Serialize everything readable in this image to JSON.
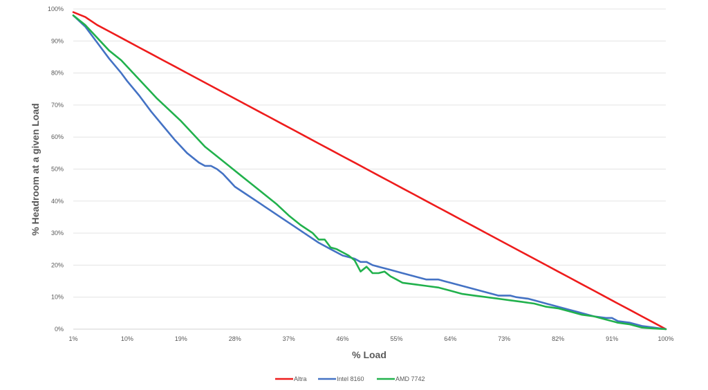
{
  "chart_data": {
    "type": "line",
    "title": "",
    "xlabel": "% Load",
    "ylabel": "% Headroom at a given Load",
    "xlim": [
      1,
      100
    ],
    "ylim": [
      0,
      100
    ],
    "grid": "horizontal",
    "legend_position": "bottom",
    "x_tick_labels": [
      {
        "value": 1,
        "label": "1%"
      },
      {
        "value": 10,
        "label": "10%"
      },
      {
        "value": 19,
        "label": "19%"
      },
      {
        "value": 28,
        "label": "28%"
      },
      {
        "value": 37,
        "label": "37%"
      },
      {
        "value": 46,
        "label": "46%"
      },
      {
        "value": 55,
        "label": "55%"
      },
      {
        "value": 64,
        "label": "64%"
      },
      {
        "value": 73,
        "label": "73%"
      },
      {
        "value": 82,
        "label": "82%"
      },
      {
        "value": 91,
        "label": "91%"
      },
      {
        "value": 100,
        "label": "100%"
      }
    ],
    "y_tick_labels": [
      {
        "value": 0,
        "label": "0%"
      },
      {
        "value": 10,
        "label": "10%"
      },
      {
        "value": 20,
        "label": "20%"
      },
      {
        "value": 30,
        "label": "30%"
      },
      {
        "value": 40,
        "label": "40%"
      },
      {
        "value": 50,
        "label": "50%"
      },
      {
        "value": 60,
        "label": "60%"
      },
      {
        "value": 70,
        "label": "70%"
      },
      {
        "value": 80,
        "label": "80%"
      },
      {
        "value": 90,
        "label": "90%"
      },
      {
        "value": 100,
        "label": "100%"
      }
    ],
    "series": [
      {
        "name": "Altra",
        "color": "#ee1c1c",
        "x": [
          1,
          3,
          5,
          7,
          9,
          10,
          12,
          14,
          16,
          18,
          20,
          22,
          24,
          26,
          28,
          30,
          32,
          34,
          36,
          38,
          40,
          42,
          44,
          46,
          48,
          50,
          52,
          54,
          56,
          58,
          60,
          62,
          64,
          66,
          68,
          70,
          72,
          74,
          76,
          78,
          80,
          82,
          84,
          86,
          88,
          90,
          92,
          94,
          96,
          98,
          100
        ],
        "y": [
          99,
          97.5,
          95,
          93,
          91,
          90,
          88,
          86,
          84,
          82,
          80,
          78,
          76,
          74,
          72,
          70,
          68,
          66,
          64,
          62,
          60,
          58,
          56,
          54,
          52,
          50,
          48,
          46,
          44,
          42,
          40,
          38,
          36,
          34,
          32,
          30,
          28,
          26,
          24,
          22,
          20,
          18,
          16,
          14,
          12,
          10,
          8,
          6,
          4,
          2,
          0
        ]
      },
      {
        "name": "Intel 8160",
        "color": "#4472c4",
        "x": [
          1,
          3,
          5,
          7,
          9,
          10,
          12,
          14,
          16,
          18,
          20,
          22,
          23,
          24,
          25,
          26,
          27,
          28,
          30,
          32,
          34,
          36,
          38,
          40,
          42,
          44,
          46,
          48,
          49,
          50,
          51,
          52,
          54,
          56,
          58,
          60,
          62,
          63,
          64,
          66,
          68,
          70,
          72,
          74,
          75,
          77,
          78,
          80,
          82,
          84,
          85,
          86,
          88,
          90,
          91,
          92,
          94,
          96,
          98,
          100
        ],
        "y": [
          98,
          94.5,
          89.5,
          84.5,
          80,
          77.5,
          73,
          68,
          63.5,
          59,
          55,
          52,
          51,
          51,
          50,
          48.5,
          46.5,
          44.5,
          42,
          39.5,
          37,
          34.5,
          32,
          29.5,
          27,
          25,
          23,
          22,
          21,
          21,
          20,
          19.5,
          18.5,
          17.5,
          16.5,
          15.5,
          15.5,
          15,
          14.5,
          13.5,
          12.5,
          11.5,
          10.5,
          10.5,
          10,
          9.5,
          9,
          8,
          7,
          6,
          5.5,
          5,
          4,
          3.5,
          3.5,
          2.5,
          2,
          1,
          0.5,
          0
        ]
      },
      {
        "name": "AMD 7742",
        "color": "#21b14c",
        "x": [
          1,
          3,
          5,
          7,
          9,
          11,
          13,
          15,
          17,
          19,
          21,
          23,
          25,
          27,
          29,
          31,
          33,
          35,
          37,
          39,
          41,
          42,
          43,
          44,
          45,
          46,
          47,
          48,
          49,
          50,
          51,
          52,
          53,
          54,
          55,
          56,
          58,
          60,
          62,
          64,
          66,
          68,
          70,
          72,
          74,
          76,
          78,
          80,
          82,
          84,
          86,
          88,
          90,
          92,
          94,
          96,
          98,
          100
        ],
        "y": [
          98,
          95,
          91,
          87,
          84,
          80,
          76,
          72,
          68.5,
          65,
          61,
          57,
          54,
          51,
          48,
          45,
          42,
          39,
          35.5,
          32.5,
          30,
          28,
          28,
          25.5,
          25,
          24,
          23,
          21.5,
          18,
          19.5,
          17.5,
          17.5,
          18,
          16.5,
          15.5,
          14.5,
          14,
          13.5,
          13,
          12,
          11,
          10.5,
          10,
          9.5,
          9,
          8.5,
          8,
          7,
          6.5,
          5.5,
          4.5,
          4,
          3,
          2,
          1.5,
          0.5,
          0.2,
          0
        ]
      }
    ]
  }
}
